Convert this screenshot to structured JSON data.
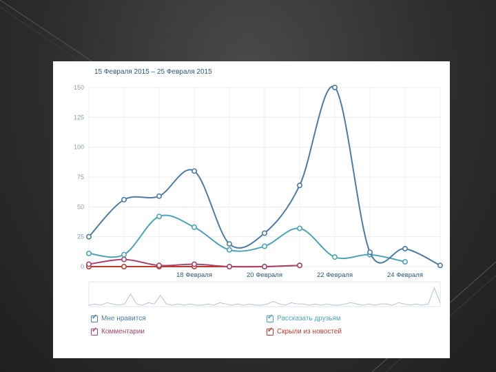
{
  "header": {
    "period": "15 Февраля 2015 – 25 Февраля 2015"
  },
  "chart_data": {
    "type": "line",
    "x": [
      "15 Февраля",
      "16 Февраля",
      "17 Февраля",
      "18 Февраля",
      "19 Февраля",
      "20 Февраля",
      "21 Февраля",
      "22 Февраля",
      "23 Февраля",
      "24 Февраля",
      "25 Февраля"
    ],
    "x_tick_labels": [
      "18 Февраля",
      "20 Февраля",
      "22 Февраля",
      "24 Февраля"
    ],
    "y_ticks": [
      0,
      25,
      50,
      75,
      100,
      125,
      150
    ],
    "ylim": [
      0,
      150
    ],
    "grid": true,
    "legend_position": "bottom",
    "series": [
      {
        "name": "Мне нравится",
        "color": "#4a7ba6",
        "values": [
          25,
          56,
          59,
          80,
          19,
          28,
          68,
          150,
          12,
          15,
          1
        ]
      },
      {
        "name": "Рассказать друзьям",
        "color": "#4aa3b8",
        "values": [
          11,
          10,
          42,
          33,
          14,
          17,
          32,
          8,
          10,
          4,
          null
        ]
      },
      {
        "name": "Комментарии",
        "color": "#a8436a",
        "values": [
          2,
          6,
          1,
          2,
          0,
          0,
          1,
          null,
          null,
          null,
          null
        ]
      },
      {
        "name": "Скрыли из новостей",
        "color": "#c0392b",
        "values": [
          0,
          0,
          0,
          0,
          0,
          0,
          1,
          null,
          null,
          null,
          null
        ]
      }
    ]
  },
  "legend": {
    "items": [
      {
        "label": "Мне нравится",
        "color": "#4a7ba6",
        "checked": true
      },
      {
        "label": "Рассказать друзьям",
        "color": "#4aa3b8",
        "checked": true
      },
      {
        "label": "Комментарии",
        "color": "#a8436a",
        "checked": true
      },
      {
        "label": "Скрыли из новостей",
        "color": "#c0392b",
        "checked": true
      }
    ]
  }
}
